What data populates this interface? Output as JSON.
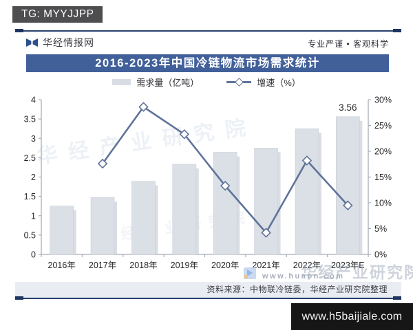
{
  "stamp": {
    "label": "TG: MYYJJPP"
  },
  "header": {
    "brand": "华经情报网",
    "logo_icon": "bowtie-book-icon",
    "tagline": "专业严谨 • 客观科学"
  },
  "title_bar": {
    "title": "2016-2023年中国冷链物流市场需求统计"
  },
  "legend": {
    "bar_label": "需求量（亿吨）",
    "line_label": "增速（%）"
  },
  "chart_data": {
    "type": "bar+line",
    "title": "2016-2023年中国冷链物流市场需求统计",
    "categories": [
      "2016年",
      "2017年",
      "2018年",
      "2019年",
      "2020年",
      "2021年",
      "2022年",
      "2023年E"
    ],
    "series": [
      {
        "name": "需求量（亿吨）",
        "type": "bar",
        "axis": "left",
        "values": [
          1.25,
          1.47,
          1.89,
          2.33,
          2.64,
          2.75,
          3.25,
          3.56
        ]
      },
      {
        "name": "增速（%）",
        "type": "line",
        "axis": "right",
        "values": [
          null,
          17.6,
          28.6,
          23.3,
          13.3,
          4.2,
          18.2,
          9.5
        ]
      }
    ],
    "left_axis": {
      "min": 0,
      "max": 4,
      "ticks": [
        "0",
        "0.5",
        "1",
        "1.5",
        "2",
        "2.5",
        "3",
        "3.5",
        "4"
      ]
    },
    "right_axis": {
      "min": 0,
      "max": 30,
      "ticks": [
        "0%",
        "5%",
        "10%",
        "15%",
        "20%",
        "25%",
        "30%"
      ]
    },
    "data_labels": [
      {
        "category_index": 7,
        "text": "3.56"
      }
    ],
    "grid": false,
    "legend_position": "top"
  },
  "watermarks": {
    "diagonal_text": "华经产业研究院",
    "brand_name": "华经产业研究院",
    "brand_url": "www.huaon.com"
  },
  "source_bar": {
    "text": "资料来源：中物联冷链委，华经产业研究院整理"
  },
  "bottom_badge": {
    "url": "www.h5baijiale.com"
  },
  "colors": {
    "accent_blue": "#41609a",
    "navy_rule": "#26406e",
    "bar_fill": "#dbdfe6",
    "bar_edge": "#c9ced8",
    "bar_shadow": "#cdd2db",
    "line": "#5f7399",
    "axis": "#a7adb8",
    "tick_text": "#26262a",
    "stamp_bg": "#4e4e50",
    "source_band_bg": "#e9ecf2",
    "badge_bg": "#161616"
  }
}
